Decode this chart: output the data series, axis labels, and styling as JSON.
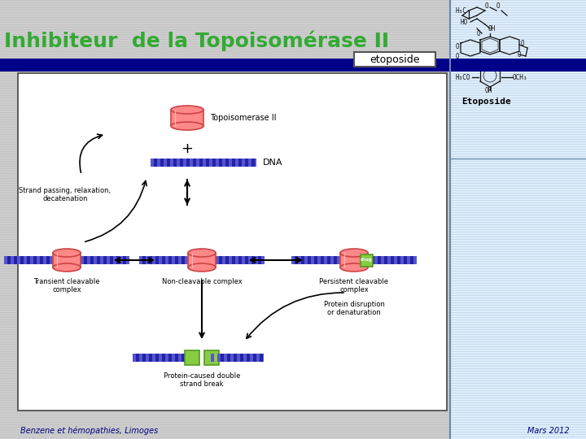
{
  "title": "Inhibiteur  de la Topoisomérase II",
  "subtitle": "etoposide",
  "footer_left": "Benzene et hémopathies, Limoges",
  "footer_right": "Mars 2012",
  "bg_stripe_color": "#cccccc",
  "title_color": "#33aa33",
  "title_fontsize": 18,
  "title_bar_color": "#000088",
  "box_bg": "#ffffff",
  "subtitle_color": "#000000",
  "footer_color": "#000080",
  "footer_fontsize": 7,
  "topo_color": "#ff8888",
  "topo_edge": "#cc4444",
  "dna_color": "#2222aa",
  "dna_stripe": "#5555cc",
  "drug_color": "#88cc44",
  "drug_edge": "#559922",
  "arrow_color": "#000000",
  "right_bg": "#ddeeff",
  "right_border": "#6688aa"
}
